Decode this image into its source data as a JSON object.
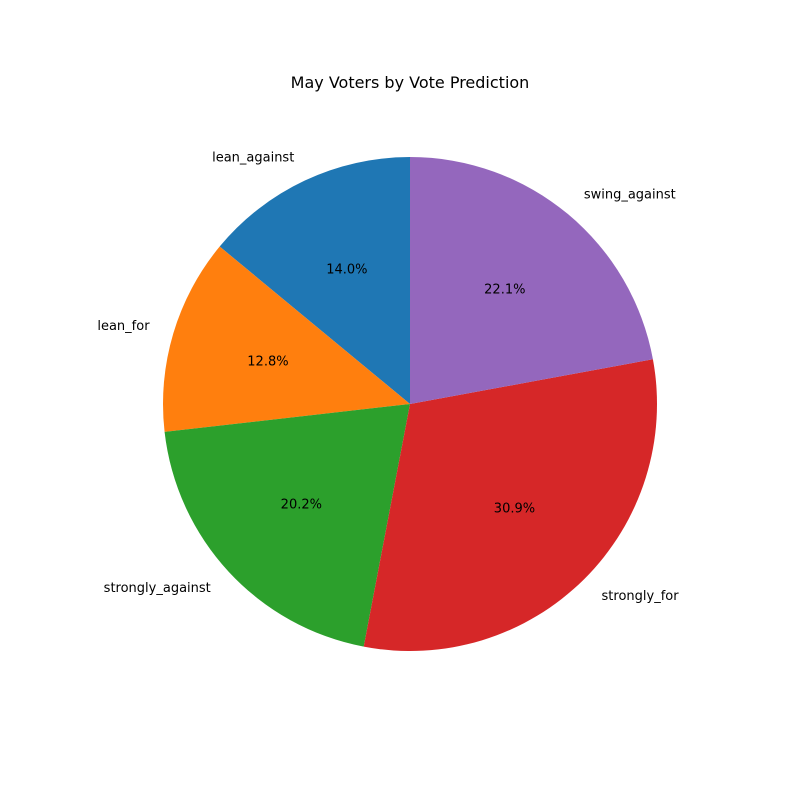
{
  "chart_data": {
    "type": "pie",
    "title": "May Voters by Vote Prediction",
    "start_angle_deg": 90,
    "direction": "counterclockwise",
    "slices": [
      {
        "label": "lean_against",
        "value": 14.0,
        "pct_label": "14.0%",
        "color": "#1f77b4"
      },
      {
        "label": "lean_for",
        "value": 12.8,
        "pct_label": "12.8%",
        "color": "#ff7f0e"
      },
      {
        "label": "strongly_against",
        "value": 20.2,
        "pct_label": "20.2%",
        "color": "#2ca02c"
      },
      {
        "label": "strongly_for",
        "value": 30.9,
        "pct_label": "30.9%",
        "color": "#d62728"
      },
      {
        "label": "swing_against",
        "value": 22.1,
        "pct_label": "22.1%",
        "color": "#9467bd"
      }
    ]
  }
}
